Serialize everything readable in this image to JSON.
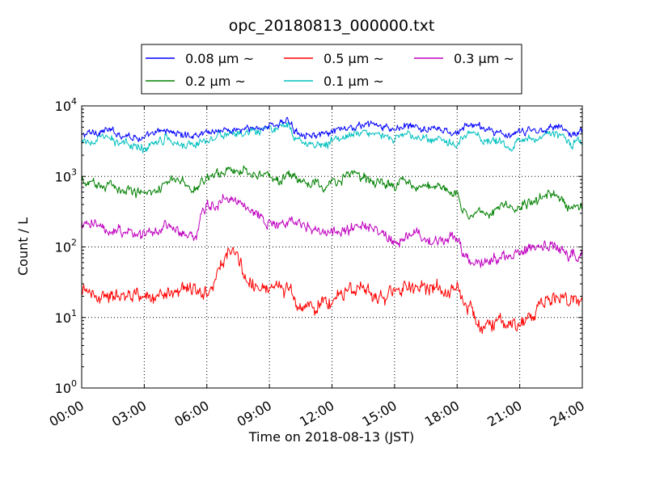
{
  "chart_data": {
    "type": "line",
    "title": "opc_20180813_000000.txt",
    "xlabel": "Time on 2018-08-13 (JST)",
    "ylabel": "Count / L",
    "x_unit": "hours",
    "xlim": [
      0,
      24
    ],
    "ylim": [
      1,
      10000
    ],
    "y_scale": "log",
    "grid": true,
    "legend_position": "top-center",
    "x_ticks": [
      {
        "value": 0,
        "label": "00:00"
      },
      {
        "value": 3,
        "label": "03:00"
      },
      {
        "value": 6,
        "label": "06:00"
      },
      {
        "value": 9,
        "label": "09:00"
      },
      {
        "value": 12,
        "label": "12:00"
      },
      {
        "value": 15,
        "label": "15:00"
      },
      {
        "value": 18,
        "label": "18:00"
      },
      {
        "value": 21,
        "label": "21:00"
      },
      {
        "value": 24,
        "label": "24:00"
      }
    ],
    "y_ticks": [
      {
        "value": 1,
        "base": "10",
        "exp": "0"
      },
      {
        "value": 10,
        "base": "10",
        "exp": "1"
      },
      {
        "value": 100,
        "base": "10",
        "exp": "2"
      },
      {
        "value": 1000,
        "base": "10",
        "exp": "3"
      },
      {
        "value": 10000,
        "base": "10",
        "exp": "4"
      }
    ],
    "legend_order": [
      0,
      2,
      4,
      1,
      3
    ],
    "series": [
      {
        "name": "0.08 μm ~",
        "color": "#0000ff",
        "noise": 0.045,
        "x": [
          0,
          0.5,
          1.2,
          2,
          2.5,
          3,
          3.5,
          4,
          4.5,
          5,
          5.5,
          6,
          6.5,
          7,
          8,
          9,
          9.5,
          10,
          10.2,
          10.5,
          11,
          11.5,
          11.7,
          12,
          12.5,
          13,
          13.5,
          14,
          14.5,
          15,
          15.5,
          16,
          16.5,
          17,
          17.5,
          18,
          18.5,
          19,
          19.5,
          20,
          20.5,
          21,
          21.5,
          22,
          22.5,
          23,
          23.5,
          24
        ],
        "y": [
          3800,
          4200,
          4500,
          3900,
          3700,
          3400,
          4000,
          4600,
          4100,
          3800,
          3900,
          4300,
          4500,
          4500,
          4600,
          5200,
          5700,
          6000,
          4500,
          4200,
          4000,
          3700,
          3900,
          4200,
          4600,
          4900,
          5300,
          5600,
          4800,
          4600,
          5300,
          4900,
          4600,
          4700,
          4300,
          3900,
          5600,
          5100,
          4600,
          4300,
          3500,
          4200,
          4500,
          4400,
          5300,
          5000,
          3800,
          4500
        ]
      },
      {
        "name": "0.1 μm ~",
        "color": "#00bfbf",
        "noise": 0.05,
        "x": [
          0,
          0.5,
          1.2,
          2,
          2.5,
          3,
          3.5,
          4,
          4.5,
          5,
          5.5,
          6,
          6.5,
          7,
          8,
          9,
          9.5,
          10,
          10.2,
          10.5,
          11,
          11.5,
          11.7,
          12,
          12.5,
          13,
          13.5,
          14,
          14.5,
          15,
          15.5,
          16,
          16.5,
          17,
          17.5,
          18,
          18.5,
          19,
          19.5,
          20,
          20.5,
          21,
          21.5,
          22,
          22.5,
          23,
          23.5,
          24
        ],
        "y": [
          2900,
          3200,
          3500,
          2900,
          2700,
          2500,
          3100,
          3600,
          3200,
          2800,
          2900,
          3500,
          3800,
          3900,
          4000,
          4500,
          4900,
          5200,
          3500,
          3200,
          3000,
          2700,
          2900,
          3300,
          3600,
          3900,
          4200,
          4500,
          3700,
          3400,
          3900,
          3600,
          3200,
          3300,
          3000,
          2800,
          4200,
          3800,
          3300,
          3100,
          2400,
          3100,
          3500,
          3500,
          4200,
          3800,
          2800,
          3000
        ]
      },
      {
        "name": "0.2 μm ~",
        "color": "#008000",
        "noise": 0.06,
        "x": [
          0,
          0.5,
          1,
          1.5,
          2,
          2.5,
          3,
          3.5,
          4,
          4.5,
          5,
          5.3,
          5.5,
          6,
          6.5,
          7,
          7.5,
          8,
          8.5,
          9,
          9.5,
          10,
          10.5,
          11,
          11.5,
          12,
          12.5,
          13,
          13.5,
          14,
          14.5,
          15,
          15.5,
          16,
          16.5,
          17,
          17.5,
          18,
          18.2,
          18.5,
          19,
          19.5,
          20,
          20.5,
          21,
          21.5,
          22,
          22.5,
          23,
          23.5,
          24
        ],
        "y": [
          830,
          790,
          750,
          720,
          680,
          630,
          600,
          650,
          800,
          880,
          760,
          650,
          690,
          960,
          1150,
          1250,
          1230,
          1180,
          1130,
          960,
          860,
          1050,
          840,
          780,
          720,
          760,
          960,
          1080,
          960,
          860,
          780,
          750,
          860,
          750,
          720,
          690,
          640,
          600,
          380,
          270,
          340,
          300,
          360,
          380,
          390,
          420,
          470,
          560,
          460,
          340,
          350
        ]
      },
      {
        "name": "0.3 μm ~",
        "color": "#bf00bf",
        "noise": 0.07,
        "x": [
          0,
          0.5,
          1,
          1.5,
          2,
          2.5,
          3,
          3.5,
          4,
          4.3,
          4.7,
          5,
          5.3,
          5.5,
          5.8,
          6,
          6.5,
          7,
          7.5,
          8,
          8.5,
          9,
          9.5,
          10,
          10.5,
          11,
          11.5,
          12,
          12.5,
          13,
          13.5,
          14,
          14.5,
          15,
          15.5,
          16,
          16.5,
          17,
          17.5,
          18,
          18.2,
          18.5,
          19,
          19.5,
          20,
          20.5,
          21,
          21.5,
          22,
          22.5,
          23,
          23.5,
          24
        ],
        "y": [
          210,
          200,
          190,
          175,
          165,
          155,
          148,
          170,
          200,
          195,
          160,
          140,
          135,
          125,
          320,
          360,
          440,
          500,
          450,
          370,
          290,
          230,
          210,
          245,
          200,
          175,
          160,
          150,
          170,
          180,
          195,
          185,
          150,
          130,
          140,
          145,
          130,
          125,
          135,
          140,
          90,
          65,
          60,
          65,
          72,
          80,
          88,
          95,
          98,
          105,
          85,
          75,
          75
        ]
      },
      {
        "name": "0.5 μm ~",
        "color": "#ff0000",
        "noise": 0.09,
        "x": [
          0,
          0.5,
          1,
          1.5,
          2,
          2.5,
          3,
          3.3,
          3.6,
          4,
          4.5,
          5,
          5.5,
          6,
          6.3,
          6.6,
          7,
          7.3,
          7.7,
          8,
          8.5,
          9,
          9.5,
          10,
          10.5,
          11,
          11.5,
          12,
          12.5,
          13,
          13.5,
          14,
          14.5,
          15,
          15.5,
          16,
          16.5,
          17,
          17.5,
          18,
          18.3,
          18.6,
          19,
          19.5,
          20,
          20.5,
          21,
          21.5,
          22,
          22.5,
          23,
          23.5,
          24
        ],
        "y": [
          22,
          21,
          21,
          20,
          21,
          20,
          19,
          18,
          22,
          24,
          25,
          25,
          24,
          24,
          28,
          60,
          85,
          80,
          50,
          33,
          27,
          26,
          25,
          24,
          15,
          14,
          15,
          17,
          22,
          26,
          23,
          20,
          17,
          25,
          27,
          26,
          28,
          29,
          24,
          27,
          17,
          13,
          9,
          7.5,
          8,
          8,
          8.5,
          9,
          16,
          18,
          20,
          17,
          16
        ]
      }
    ]
  }
}
